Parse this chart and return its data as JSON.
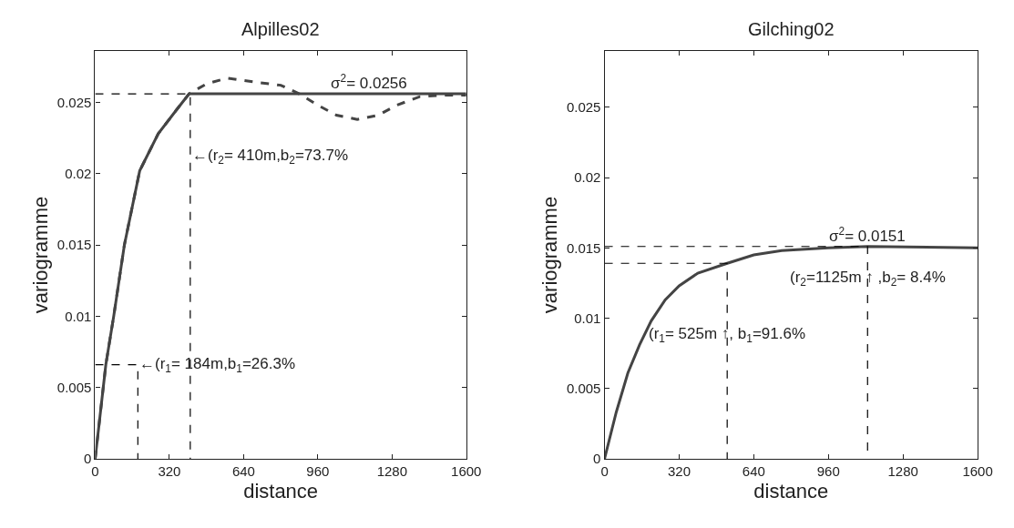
{
  "chart_data": [
    {
      "type": "line",
      "title": "Alpilles02",
      "xlabel": "distance",
      "ylabel": "variogramme",
      "xlim": [
        0,
        1600
      ],
      "xticks": [
        0,
        320,
        640,
        960,
        1280,
        1600
      ],
      "ylim": [
        0,
        0.0286
      ],
      "yticks": [
        0,
        0.005,
        0.01,
        0.015,
        0.02,
        0.025
      ],
      "series": [
        {
          "color": "#444444",
          "line_style": "solid",
          "x": [
            0,
            46,
            80,
            126,
            192,
            272,
            352,
            405,
            1600
          ],
          "values": [
            0,
            0.0066,
            0.01,
            0.015,
            0.0202,
            0.0228,
            0.0245,
            0.0256,
            0.0256
          ]
        },
        {
          "color": "#444444",
          "line_style": "dashed",
          "x": [
            0,
            46,
            80,
            126,
            192,
            272,
            352,
            405,
            480,
            570,
            700,
            800,
            880,
            960,
            1040,
            1130,
            1220,
            1300,
            1400,
            1500,
            1600
          ],
          "values": [
            0,
            0.0066,
            0.01,
            0.015,
            0.0202,
            0.0228,
            0.0245,
            0.0256,
            0.0263,
            0.0267,
            0.0264,
            0.0262,
            0.0256,
            0.0248,
            0.0241,
            0.0238,
            0.0241,
            0.0248,
            0.0254,
            0.0255,
            0.0255
          ]
        },
        {
          "color": "#000000",
          "line_style": "dashed",
          "x": [
            0,
            410,
            410
          ],
          "values": [
            0.0256,
            0.0256,
            0
          ]
        },
        {
          "color": "#000000",
          "line_style": "dashed",
          "x": [
            0,
            184,
            184
          ],
          "values": [
            0.0066,
            0.0066,
            0
          ]
        }
      ],
      "annotations": [
        {
          "text": "σ$^{2}$= 0.0256",
          "x": 1180,
          "y": 0.0256
        },
        {
          "text": "←(r$_{2}$= 410m,b$_{2}$=73.7%",
          "x": 410,
          "y": 0.0212
        },
        {
          "text": "←(r$_{1}$= 184m,b$_{1}$=26.3%",
          "x": 184,
          "y": 0.0066
        }
      ]
    },
    {
      "type": "line",
      "title": "Gilching02",
      "xlabel": "distance",
      "ylabel": "variogramme",
      "xlim": [
        0,
        1600
      ],
      "xticks": [
        0,
        320,
        640,
        960,
        1280,
        1600
      ],
      "ylim": [
        0,
        0.029
      ],
      "yticks": [
        0,
        0.005,
        0.01,
        0.015,
        0.02,
        0.025
      ],
      "series": [
        {
          "color": "#444444",
          "line_style": "solid",
          "x": [
            0,
            50,
            100,
            150,
            200,
            260,
            320,
            400,
            526,
            640,
            760,
            960,
            1128,
            1600
          ],
          "values": [
            0,
            0.0033,
            0.0061,
            0.0081,
            0.0098,
            0.0113,
            0.0123,
            0.0132,
            0.0139,
            0.0145,
            0.0148,
            0.015,
            0.0151,
            0.015
          ]
        },
        {
          "color": "#000000",
          "line_style": "dashed",
          "x": [
            0,
            1128,
            1128
          ],
          "values": [
            0.0151,
            0.0151,
            0
          ]
        },
        {
          "color": "#000000",
          "line_style": "dashed",
          "x": [
            0,
            526,
            526
          ],
          "values": [
            0.0139,
            0.0139,
            0
          ]
        }
      ],
      "annotations": [
        {
          "text": "σ$^{2}$= 0.0151",
          "x": 1128,
          "y": 0.0151
        },
        {
          "text": "(r$_{2}$=1125m ↑ ,b$_{2}$= 8.4%",
          "x": 1128,
          "y": 0.0128
        },
        {
          "text": "(r$_{1}$= 525m ↑, b$_{1}$=91.6%",
          "x": 526,
          "y": 0.0088
        }
      ]
    }
  ]
}
